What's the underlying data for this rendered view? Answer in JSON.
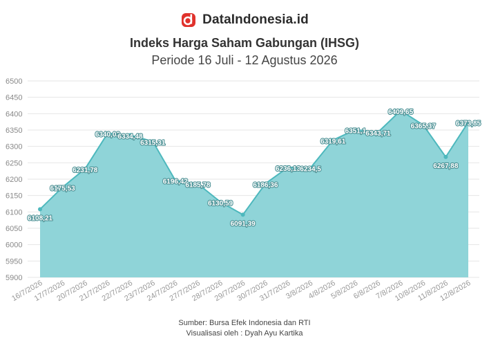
{
  "brand": {
    "name": "DataIndonesia.id",
    "logo_icon": "dataindonesia-logo-icon",
    "logo_color": "#e0322c"
  },
  "chart_data": {
    "type": "area",
    "title": "Indeks Harga Saham Gabungan (IHSG)",
    "subtitle": "Periode 16 Juli - 12 Agustus 2026",
    "xlabel": "",
    "ylabel": "",
    "ylim": [
      5900,
      6500
    ],
    "yticks": [
      5900,
      5950,
      6000,
      6050,
      6100,
      6150,
      6200,
      6250,
      6300,
      6350,
      6400,
      6450,
      6500
    ],
    "grid": true,
    "fill_color": "#8fd4d8",
    "line_color": "#4db8bd",
    "categories": [
      "16/7/2026",
      "17/7/2026",
      "20/7/2026",
      "21/7/2026",
      "22/7/2026",
      "23/7/2026",
      "24/7/2026",
      "27/7/2026",
      "28/7/2026",
      "29/7/2026",
      "30/7/2026",
      "31/7/2026",
      "3/8/2026",
      "4/8/2026",
      "5/8/2026",
      "6/8/2026",
      "7/8/2026",
      "10/8/2026",
      "11/8/2026",
      "12/8/2026"
    ],
    "values": [
      6108.21,
      6175.53,
      6231.78,
      6340.02,
      6334.48,
      6315.31,
      6196.42,
      6185.78,
      6130.59,
      6091.39,
      6186.36,
      6236.13,
      6234.5,
      6319.61,
      6351.1,
      6343.71,
      6409.65,
      6365.37,
      6267.88,
      6373.85
    ],
    "value_labels": [
      "6108,21",
      "6175,53",
      "6231,78",
      "6340,02",
      "6334,48",
      "6315,31",
      "6196,42",
      "6185,78",
      "6130,59",
      "6091,39",
      "6186,36",
      "6236,13",
      "6234,5",
      "6319,61",
      "6351,1",
      "6343,71",
      "6409,65",
      "6365,37",
      "6267,88",
      "6373,85"
    ]
  },
  "footer": {
    "source": "Sumber: Bursa Efek Indonesia dan RTI",
    "credit": "Visualisasi oleh : Dyah Ayu Kartika"
  }
}
